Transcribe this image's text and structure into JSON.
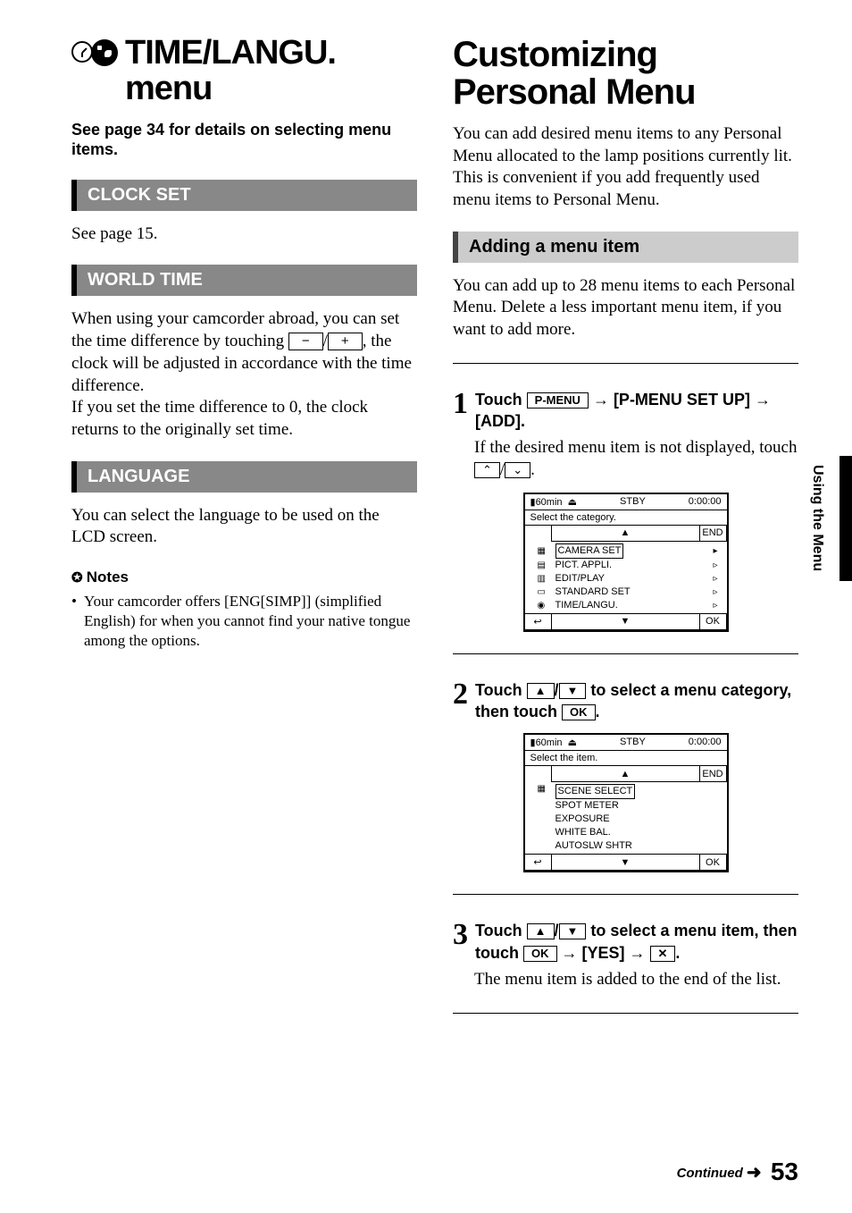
{
  "left": {
    "title_a": "TIME/LANGU.",
    "title_b": "menu",
    "subtitle": "See page 34 for details on selecting menu items.",
    "clock_set": {
      "heading": "CLOCK SET",
      "body": "See page 15."
    },
    "world_time": {
      "heading": "WORLD TIME",
      "body1": "When using your camcorder abroad, you can set the time difference by touching ",
      "minus": "−",
      "slash": "/",
      "plus": "+",
      "body2": ", the clock will be adjusted in accordance with the time difference.",
      "body3": "If you set the time difference to 0, the clock returns to the originally set time."
    },
    "language": {
      "heading": "LANGUAGE",
      "body": "You can select the language to be used on the LCD screen.",
      "notes_hd": "Notes",
      "note1": "Your camcorder offers [ENG[SIMP]] (simplified English) for when you cannot find your native tongue among the options."
    }
  },
  "right": {
    "title": "Customizing Personal Menu",
    "intro": "You can add desired menu items to any Personal Menu allocated to the lamp positions currently lit. This is convenient if you add frequently used menu items to Personal Menu.",
    "adding_hd": "Adding a menu item",
    "adding_body": "You can add up to 28 menu items to each Personal Menu. Delete a less important menu item, if you want to add more.",
    "step1": {
      "num": "1",
      "head_a": "Touch ",
      "pmenu": "P-MENU",
      "head_b": " → [P-MENU SET UP] → [ADD].",
      "body_a": "If the desired menu item is not displayed, touch ",
      "up": "⌃",
      "down": "⌄",
      "body_b": "."
    },
    "step2": {
      "num": "2",
      "head_a": "Touch ",
      "up": "▲",
      "down": "▼",
      "head_b": " to select a menu category, then touch ",
      "ok": "OK",
      "head_c": "."
    },
    "step3": {
      "num": "3",
      "head_a": "Touch ",
      "up": "▲",
      "down": "▼",
      "head_b": " to select a menu item, then touch ",
      "ok": "OK",
      "head_c": " → [YES] → ",
      "close": "✕",
      "head_d": ".",
      "body": "The menu item is added to the end of the list."
    },
    "lcd1": {
      "t_left": "60min",
      "t_mid": "STBY",
      "t_right": "0:00:00",
      "sub": "Select the category.",
      "up": "▲",
      "down": "▼",
      "end": "END",
      "back": "↩",
      "ok": "OK",
      "items": [
        {
          "icon": "▦",
          "label": "CAMERA SET",
          "chev": "▸"
        },
        {
          "icon": "▤",
          "label": "PICT. APPLI.",
          "chev": "▹"
        },
        {
          "icon": "▥",
          "label": "EDIT/PLAY",
          "chev": "▹"
        },
        {
          "icon": "▭",
          "label": "STANDARD SET",
          "chev": "▹"
        },
        {
          "icon": "◉",
          "label": "TIME/LANGU.",
          "chev": "▹"
        }
      ]
    },
    "lcd2": {
      "t_left": "60min",
      "t_mid": "STBY",
      "t_right": "0:00:00",
      "sub": "Select the item.",
      "up": "▲",
      "down": "▼",
      "end": "END",
      "back": "↩",
      "ok": "OK",
      "items": [
        "SCENE SELECT",
        "SPOT METER",
        "EXPOSURE",
        "WHITE BAL.",
        "AUTOSLW SHTR"
      ]
    }
  },
  "side_label": "Using the Menu",
  "footer": {
    "cont": "Continued",
    "arrow": "➜",
    "page": "53"
  }
}
